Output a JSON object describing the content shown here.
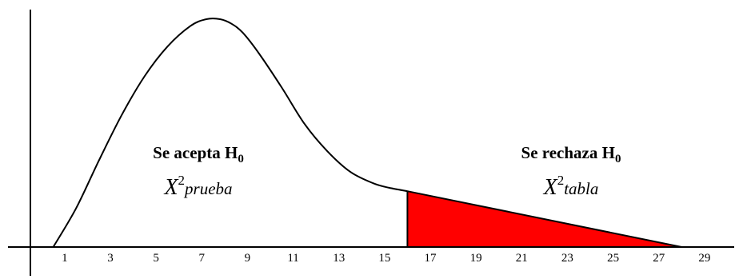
{
  "chart_data": {
    "type": "area",
    "x_ticks": [
      1,
      3,
      5,
      7,
      9,
      11,
      13,
      15,
      17,
      19,
      21,
      23,
      25,
      27,
      29
    ],
    "x_range": [
      -0.5,
      30.3
    ],
    "y_range": [
      0,
      1
    ],
    "grid": false,
    "curve": {
      "x": [
        0.5,
        1.5,
        2.5,
        3.5,
        4.5,
        5.5,
        6.5,
        7.2,
        7.8,
        8.3,
        8.8,
        9.5,
        10.5,
        11.5,
        12.5,
        13.5,
        14.5,
        15.2,
        16.0
      ],
      "y": [
        0.0,
        0.17,
        0.38,
        0.58,
        0.75,
        0.88,
        0.97,
        1.0,
        1.0,
        0.98,
        0.94,
        0.85,
        0.7,
        0.54,
        0.42,
        0.33,
        0.28,
        0.26,
        0.245
      ]
    },
    "rejection_line": {
      "x": [
        16.0,
        28.0
      ],
      "y": [
        0.245,
        0.0
      ]
    },
    "critical_x": 16.0,
    "accept_region": {
      "title": "Se acepta H",
      "title_sub": "0",
      "stat_main": "X",
      "stat_sup": "2",
      "stat_sub": "prueba"
    },
    "reject_region": {
      "title": "Se rechaza H",
      "title_sub": "0",
      "stat_main": "X",
      "stat_sup": "2",
      "stat_sub": "tabla",
      "fill_color": "#ff0000"
    }
  }
}
